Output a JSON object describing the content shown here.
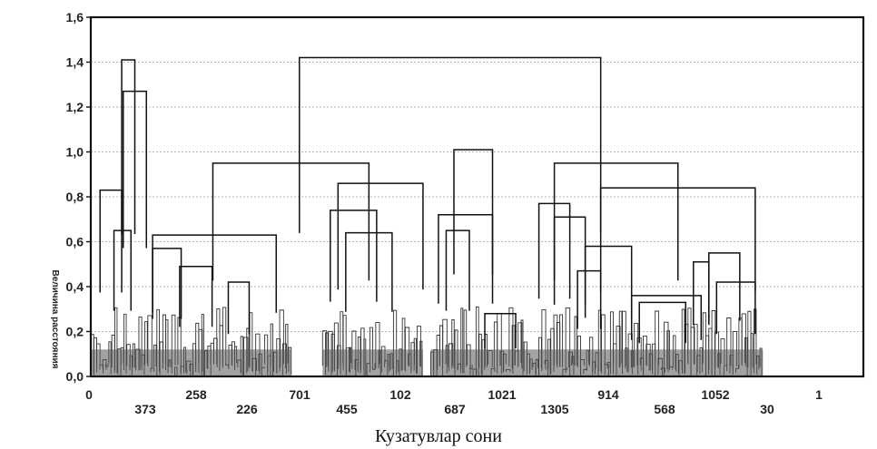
{
  "chart_data": {
    "type": "dendrogram",
    "ylabel": "Величина расстояния",
    "xlabel": "Кузатувлар сони",
    "ylim": [
      0,
      1.6
    ],
    "yticks": [
      "0,0",
      "0,2",
      "0,4",
      "0,6",
      "0,8",
      "1,0",
      "1,2",
      "1,4",
      "1,6"
    ],
    "grid": true,
    "leaf_labels_row1": [
      "0",
      "258",
      "701",
      "102",
      "1021",
      "914",
      "1052",
      "1"
    ],
    "leaf_labels_row2": [
      "373",
      "226",
      "455",
      "687",
      "1305",
      "568",
      "30"
    ],
    "merges": [
      {
        "x1": 0.012,
        "x2": 0.04,
        "h": 0.83
      },
      {
        "x1": 0.042,
        "x2": 0.072,
        "h": 1.27
      },
      {
        "x1": 0.04,
        "x2": 0.057,
        "h": 1.41
      },
      {
        "x1": 0.03,
        "x2": 0.052,
        "h": 0.65
      },
      {
        "x1": 0.08,
        "x2": 0.24,
        "h": 0.63
      },
      {
        "x1": 0.08,
        "x2": 0.117,
        "h": 0.57
      },
      {
        "x1": 0.115,
        "x2": 0.157,
        "h": 0.49
      },
      {
        "x1": 0.178,
        "x2": 0.205,
        "h": 0.42
      },
      {
        "x1": 0.32,
        "x2": 0.43,
        "h": 0.86
      },
      {
        "x1": 0.31,
        "x2": 0.37,
        "h": 0.74
      },
      {
        "x1": 0.33,
        "x2": 0.39,
        "h": 0.64
      },
      {
        "x1": 0.158,
        "x2": 0.36,
        "h": 0.95
      },
      {
        "x1": 0.47,
        "x2": 0.52,
        "h": 1.01
      },
      {
        "x1": 0.45,
        "x2": 0.52,
        "h": 0.72
      },
      {
        "x1": 0.46,
        "x2": 0.49,
        "h": 0.65
      },
      {
        "x1": 0.27,
        "x2": 0.66,
        "h": 1.42
      },
      {
        "x1": 0.6,
        "x2": 0.76,
        "h": 0.95
      },
      {
        "x1": 0.66,
        "x2": 0.86,
        "h": 0.84
      },
      {
        "x1": 0.58,
        "x2": 0.62,
        "h": 0.77
      },
      {
        "x1": 0.6,
        "x2": 0.64,
        "h": 0.71
      },
      {
        "x1": 0.64,
        "x2": 0.7,
        "h": 0.58
      },
      {
        "x1": 0.63,
        "x2": 0.66,
        "h": 0.47
      },
      {
        "x1": 0.7,
        "x2": 0.79,
        "h": 0.36
      },
      {
        "x1": 0.71,
        "x2": 0.77,
        "h": 0.33
      },
      {
        "x1": 0.8,
        "x2": 0.84,
        "h": 0.55
      },
      {
        "x1": 0.78,
        "x2": 0.8,
        "h": 0.51
      },
      {
        "x1": 0.81,
        "x2": 0.86,
        "h": 0.42
      },
      {
        "x1": 0.51,
        "x2": 0.55,
        "h": 0.28
      }
    ]
  }
}
